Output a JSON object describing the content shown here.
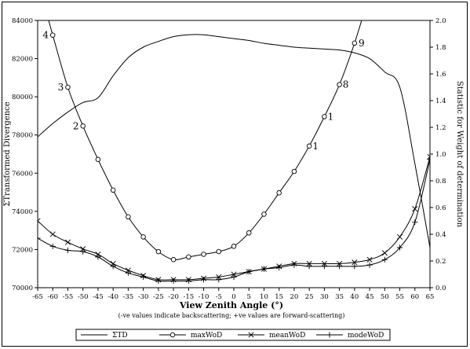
{
  "chart_data": {
    "type": "line",
    "xlabel": "View Zenith Angle (°)",
    "xnote": "(-ve values indicate backscattering; +ve values are forward-scattering)",
    "ylabel_left": "ΣTransformed Divergence",
    "ylabel_right": "Statistic for Weight of determination",
    "xlim": [
      -65,
      65
    ],
    "ylim_left": [
      70000,
      84000
    ],
    "ylim_right": [
      0.0,
      2.0
    ],
    "x_ticks": [
      -65,
      -60,
      -55,
      -50,
      -45,
      -40,
      -35,
      -30,
      -25,
      -20,
      -15,
      -10,
      -5,
      0,
      5,
      10,
      15,
      20,
      25,
      30,
      35,
      40,
      45,
      50,
      55,
      60,
      65
    ],
    "x_tick_labels": [
      "-65",
      "-60",
      "-55",
      "-50",
      "-45",
      "-40",
      "-35",
      "-30",
      "-25",
      "-20",
      "-15",
      "-10",
      "-5",
      "0",
      "5",
      "10",
      "15",
      "20",
      "25",
      "30",
      "35",
      "40",
      "45",
      "50",
      "55",
      "60",
      "65"
    ],
    "y_left_ticks": [
      "70000",
      "72000",
      "74000",
      "76000",
      "78000",
      "80000",
      "82000",
      "84000"
    ],
    "y_right_ticks": [
      "0.0",
      "0.2",
      "0.4",
      "0.6",
      "0.8",
      "1.0",
      "1.2",
      "1.4",
      "1.6",
      "1.8",
      "2.0"
    ],
    "legend_position": "bottom",
    "series": [
      {
        "name": "ΣTD",
        "axis": "left",
        "marker": "none",
        "x": [
          -65,
          -60,
          -55,
          -50,
          -45,
          -40,
          -35,
          -30,
          -25,
          -20,
          -15,
          -10,
          -5,
          0,
          5,
          10,
          15,
          20,
          25,
          30,
          35,
          40,
          45,
          50,
          55,
          60,
          65
        ],
        "values": [
          77900,
          78600,
          79200,
          79700,
          79950,
          81100,
          82050,
          82600,
          82900,
          83150,
          83250,
          83250,
          83150,
          83050,
          82950,
          82800,
          82700,
          82600,
          82550,
          82500,
          82450,
          82300,
          82000,
          81300,
          80500,
          76500,
          72100
        ]
      },
      {
        "name": "maxWoD",
        "axis": "right",
        "marker": "circle",
        "x": [
          -60,
          -55,
          -50,
          -45,
          -40,
          -35,
          -30,
          -25,
          -20,
          -15,
          -10,
          -5,
          0,
          5,
          10,
          15,
          20,
          25,
          30,
          35,
          40
        ],
        "values": [
          1.89,
          1.5,
          1.21,
          0.96,
          0.73,
          0.53,
          0.38,
          0.27,
          0.21,
          0.23,
          0.25,
          0.27,
          0.31,
          0.41,
          0.55,
          0.71,
          0.87,
          1.06,
          1.28,
          1.52,
          1.83
        ]
      },
      {
        "name": "meanWoD",
        "axis": "right",
        "marker": "x",
        "x": [
          -65,
          -60,
          -55,
          -50,
          -45,
          -40,
          -35,
          -30,
          -25,
          -20,
          -15,
          -10,
          -5,
          0,
          5,
          10,
          15,
          20,
          25,
          30,
          35,
          40,
          45,
          50,
          55,
          60,
          65
        ],
        "values": [
          0.5,
          0.4,
          0.34,
          0.29,
          0.25,
          0.18,
          0.13,
          0.09,
          0.06,
          0.06,
          0.06,
          0.07,
          0.08,
          0.1,
          0.12,
          0.14,
          0.16,
          0.18,
          0.18,
          0.18,
          0.18,
          0.19,
          0.21,
          0.26,
          0.38,
          0.59,
          0.98
        ]
      },
      {
        "name": "modeWoD",
        "axis": "right",
        "marker": "plus",
        "x": [
          -65,
          -60,
          -55,
          -50,
          -45,
          -40,
          -35,
          -30,
          -25,
          -20,
          -15,
          -10,
          -5,
          0,
          5,
          10,
          15,
          20,
          25,
          30,
          35,
          40,
          45,
          50,
          55,
          60,
          65
        ],
        "values": [
          0.37,
          0.31,
          0.28,
          0.27,
          0.23,
          0.16,
          0.11,
          0.08,
          0.05,
          0.05,
          0.05,
          0.06,
          0.06,
          0.08,
          0.12,
          0.14,
          0.15,
          0.17,
          0.16,
          0.16,
          0.16,
          0.16,
          0.17,
          0.21,
          0.3,
          0.49,
          0.96
        ]
      }
    ],
    "annotations": [
      {
        "text": "4",
        "x": -60,
        "y": 1.89
      },
      {
        "text": "3",
        "x": -55,
        "y": 1.5
      },
      {
        "text": "2",
        "x": -50,
        "y": 1.21
      },
      {
        "text": "9",
        "x": 40,
        "y": 1.83
      },
      {
        "text": "8",
        "x": 35,
        "y": 1.52
      },
      {
        "text": "1",
        "x": 30,
        "y": 1.28
      },
      {
        "text": "1",
        "x": 25,
        "y": 1.06
      }
    ]
  }
}
